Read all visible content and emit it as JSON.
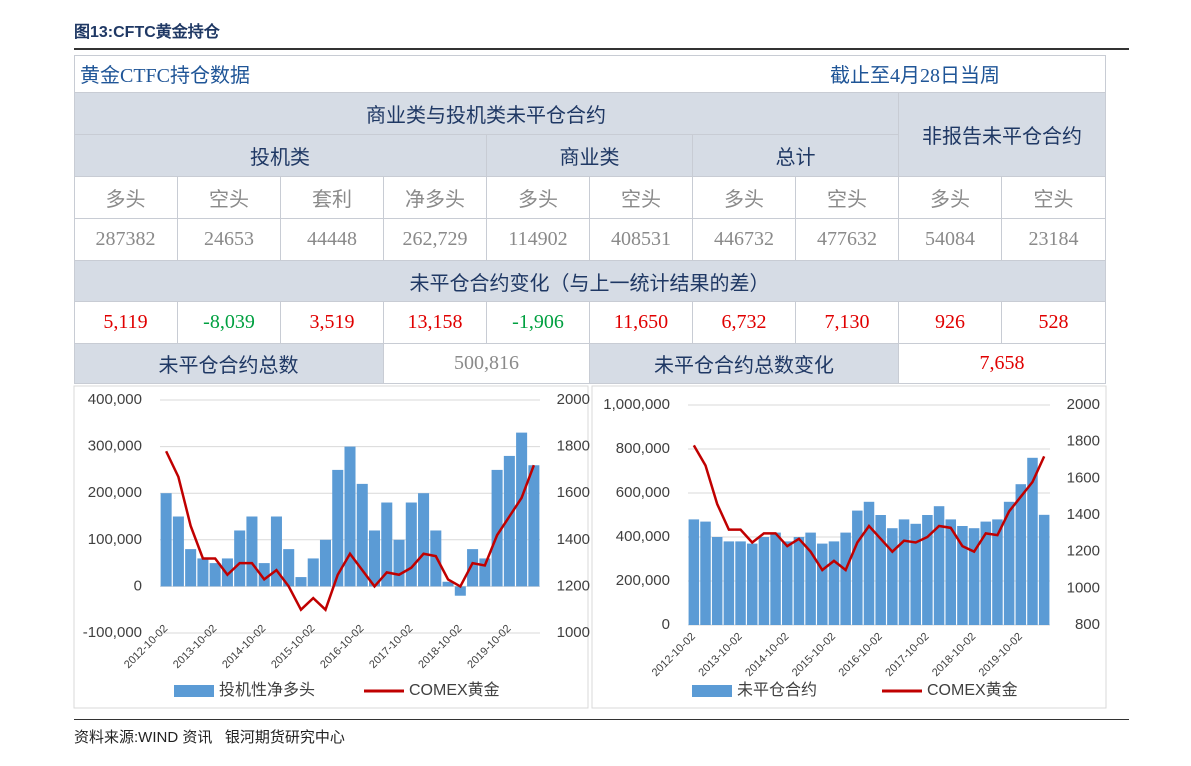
{
  "header": {
    "figure_title": "图13:CFTC黄金持仓"
  },
  "table": {
    "title": "黄金CTFC持仓数据",
    "date": "截止至4月28日当周",
    "group_header": "商业类与投机类未平仓合约",
    "nonreport_header": "非报告未平仓合约",
    "sub_headers": [
      "投机类",
      "商业类",
      "总计"
    ],
    "columns": [
      "多头",
      "空头",
      "套利",
      "净多头",
      "多头",
      "空头",
      "多头",
      "空头",
      "多头",
      "空头"
    ],
    "values": [
      "287382",
      "24653",
      "44448",
      "262,729",
      "114902",
      "408531",
      "446732",
      "477632",
      "54084",
      "23184"
    ],
    "change_header": "未平仓合约变化（与上一统计结果的差）",
    "changes": [
      "5,119",
      "-8,039",
      "3,519",
      "13,158",
      "-1,906",
      "11,650",
      "6,732",
      "7,130",
      "926",
      "528"
    ],
    "total_label": "未平仓合约总数",
    "total_value": "500,816",
    "total_change_label": "未平仓合约总数变化",
    "total_change_value": "7,658"
  },
  "chart_data": [
    {
      "type": "bar_line",
      "categories": [
        "2012-10-02",
        null,
        null,
        null,
        "2013-10-02",
        null,
        null,
        null,
        "2014-10-02",
        null,
        null,
        null,
        "2015-10-02",
        null,
        null,
        null,
        "2016-10-02",
        null,
        null,
        null,
        "2017-10-02",
        null,
        null,
        null,
        "2018-10-02",
        null,
        null,
        null,
        "2019-10-02",
        null,
        null
      ],
      "series": [
        {
          "name": "投机性净多头",
          "color": "#5b9bd5",
          "values": [
            200000,
            150000,
            80000,
            60000,
            50000,
            60000,
            120000,
            150000,
            50000,
            150000,
            80000,
            20000,
            60000,
            100000,
            250000,
            300000,
            220000,
            120000,
            180000,
            100000,
            180000,
            200000,
            120000,
            10000,
            -20000,
            80000,
            60000,
            250000,
            280000,
            330000,
            260000
          ]
        },
        {
          "name": "COMEX黄金",
          "color": "#c00000",
          "axis": "y2",
          "values": [
            1780,
            1670,
            1460,
            1320,
            1320,
            1250,
            1300,
            1300,
            1230,
            1270,
            1200,
            1100,
            1150,
            1100,
            1250,
            1340,
            1270,
            1200,
            1260,
            1250,
            1280,
            1340,
            1330,
            1230,
            1200,
            1300,
            1290,
            1420,
            1500,
            1580,
            1720
          ]
        }
      ],
      "ylim": [
        -100000,
        400000
      ],
      "yticks": [
        {
          "value": -100000,
          "label": "-100,000"
        },
        0,
        {
          "value": 100000,
          "label": "100,000"
        },
        {
          "value": 200000,
          "label": "200,000"
        },
        {
          "value": 300000,
          "label": "300,000"
        },
        {
          "value": 400000,
          "label": "400,000"
        }
      ],
      "y2lim": [
        1000,
        2000
      ],
      "y2ticks": [
        1000,
        1200,
        1400,
        1600,
        1800,
        2000
      ],
      "grid": true
    },
    {
      "type": "bar_line",
      "categories": [
        "2012-10-02",
        null,
        null,
        null,
        "2013-10-02",
        null,
        null,
        null,
        "2014-10-02",
        null,
        null,
        null,
        "2015-10-02",
        null,
        null,
        null,
        "2016-10-02",
        null,
        null,
        null,
        "2017-10-02",
        null,
        null,
        null,
        "2018-10-02",
        null,
        null,
        null,
        "2019-10-02",
        null,
        null
      ],
      "series": [
        {
          "name": "未平仓合约",
          "color": "#5b9bd5",
          "values": [
            480000,
            470000,
            400000,
            380000,
            380000,
            370000,
            400000,
            420000,
            380000,
            400000,
            420000,
            370000,
            380000,
            420000,
            520000,
            560000,
            500000,
            440000,
            480000,
            460000,
            500000,
            540000,
            480000,
            450000,
            440000,
            470000,
            480000,
            560000,
            640000,
            760000,
            500816
          ]
        },
        {
          "name": "COMEX黄金",
          "color": "#c00000",
          "axis": "y2",
          "values": [
            1780,
            1670,
            1460,
            1320,
            1320,
            1250,
            1300,
            1300,
            1230,
            1270,
            1200,
            1100,
            1150,
            1100,
            1250,
            1340,
            1270,
            1200,
            1260,
            1250,
            1280,
            1340,
            1330,
            1230,
            1200,
            1300,
            1290,
            1420,
            1500,
            1580,
            1720
          ]
        }
      ],
      "ylim": [
        0,
        1000000
      ],
      "yticks": [
        0,
        {
          "value": 200000,
          "label": "200,000"
        },
        {
          "value": 400000,
          "label": "400,000"
        },
        {
          "value": 600000,
          "label": "600,000"
        },
        {
          "value": 800000,
          "label": "800,000"
        },
        {
          "value": 1000000,
          "label": "1,000,000"
        }
      ],
      "y2lim": [
        800,
        2000
      ],
      "y2ticks": [
        800,
        1000,
        1200,
        1400,
        1600,
        1800,
        2000
      ],
      "grid": true
    }
  ]
}
